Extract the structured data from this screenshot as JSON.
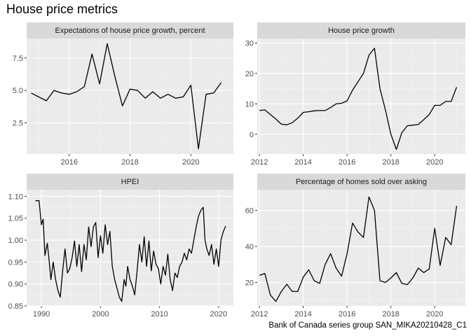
{
  "title": "House price metrics",
  "caption": "Bank of Canada series group SAN_MIKA20210428_C1",
  "chart_data": [
    {
      "type": "line",
      "title": "Expectations of house price growth, percent",
      "xlim": [
        2014.6,
        2021.4
      ],
      "ylim": [
        0.1,
        9.0
      ],
      "x_ticks": [
        2016,
        2018,
        2020
      ],
      "y_ticks": [
        2.5,
        5.0,
        7.5
      ],
      "y_tick_labels": [
        "2.5",
        "5.0",
        "7.5"
      ],
      "x": [
        2014.75,
        2015.25,
        2015.5,
        2015.75,
        2016.0,
        2016.25,
        2016.5,
        2016.75,
        2017.0,
        2017.25,
        2017.5,
        2017.75,
        2018.0,
        2018.25,
        2018.5,
        2018.75,
        2019.0,
        2019.25,
        2019.5,
        2019.75,
        2020.0,
        2020.25,
        2020.5,
        2020.75,
        2021.0
      ],
      "y": [
        4.8,
        4.2,
        5.0,
        4.8,
        4.7,
        4.9,
        5.3,
        7.8,
        5.5,
        8.6,
        6.1,
        3.8,
        5.1,
        5.0,
        4.4,
        4.9,
        4.4,
        4.7,
        4.4,
        4.5,
        5.4,
        0.5,
        4.7,
        4.8,
        5.6
      ]
    },
    {
      "type": "line",
      "title": "House price growth",
      "xlim": [
        2011.9,
        2021.4
      ],
      "ylim": [
        -6.5,
        31.5
      ],
      "x_ticks": [
        2012,
        2014,
        2016,
        2018,
        2020
      ],
      "y_ticks": [
        0,
        10,
        20,
        30
      ],
      "y_tick_labels": [
        "0",
        "10",
        "20",
        "30"
      ],
      "x": [
        2012.0,
        2012.25,
        2012.5,
        2012.75,
        2013.0,
        2013.25,
        2013.5,
        2013.75,
        2014.0,
        2014.25,
        2014.5,
        2014.75,
        2015.0,
        2015.25,
        2015.5,
        2015.75,
        2016.0,
        2016.25,
        2016.5,
        2016.75,
        2017.0,
        2017.25,
        2017.5,
        2017.75,
        2018.0,
        2018.25,
        2018.5,
        2018.75,
        2019.0,
        2019.25,
        2019.5,
        2019.75,
        2020.0,
        2020.25,
        2020.5,
        2020.75,
        2021.0
      ],
      "y": [
        7.8,
        8.0,
        6.5,
        5.0,
        3.3,
        3.1,
        3.8,
        5.3,
        7.2,
        7.4,
        7.7,
        7.8,
        7.8,
        8.8,
        10.0,
        10.2,
        11.0,
        14.5,
        17.3,
        20.0,
        26.0,
        28.3,
        15.0,
        8.0,
        0.0,
        -5.0,
        0.5,
        2.8,
        3.0,
        3.2,
        4.8,
        6.5,
        9.5,
        9.5,
        10.8,
        10.8,
        15.5
      ]
    },
    {
      "type": "line",
      "title": "HPEI",
      "xlim": [
        1987.5,
        2022.5
      ],
      "ylim": [
        0.85,
        1.115
      ],
      "x_ticks": [
        1990,
        2000,
        2010,
        2020
      ],
      "y_ticks": [
        0.85,
        0.9,
        0.95,
        1.0,
        1.05,
        1.1
      ],
      "y_tick_labels": [
        "0.85",
        "0.90",
        "0.95",
        "1.00",
        "1.05",
        "1.10"
      ],
      "x": [
        1989.0,
        1989.6,
        1990.0,
        1990.3,
        1990.6,
        1991.0,
        1991.3,
        1991.6,
        1992.0,
        1992.4,
        1992.8,
        1993.2,
        1993.6,
        1994.0,
        1994.4,
        1994.8,
        1995.2,
        1995.6,
        1996.0,
        1996.4,
        1996.8,
        1997.2,
        1997.6,
        1998.0,
        1998.4,
        1998.8,
        1999.2,
        1999.6,
        2000.0,
        2000.4,
        2000.8,
        2001.2,
        2001.6,
        2002.0,
        2002.4,
        2002.8,
        2003.2,
        2003.6,
        2004.0,
        2004.3,
        2004.6,
        2005.0,
        2005.4,
        2005.8,
        2006.2,
        2006.6,
        2007.0,
        2007.4,
        2007.8,
        2008.2,
        2008.6,
        2009.0,
        2009.4,
        2009.8,
        2010.2,
        2010.6,
        2011.0,
        2011.4,
        2011.8,
        2012.2,
        2012.6,
        2013.0,
        2013.4,
        2013.8,
        2014.2,
        2014.6,
        2015.0,
        2015.4,
        2015.8,
        2016.2,
        2016.6,
        2017.0,
        2017.4,
        2017.7,
        2018.0,
        2018.4,
        2018.8,
        2019.2,
        2019.6,
        2020.0,
        2020.4,
        2020.8,
        2021.2
      ],
      "y": [
        1.09,
        1.09,
        1.035,
        1.048,
        0.965,
        0.993,
        0.955,
        0.91,
        0.95,
        0.91,
        0.885,
        0.87,
        0.93,
        0.98,
        0.925,
        0.935,
        0.96,
        0.998,
        0.94,
        0.99,
        0.928,
        0.99,
        0.955,
        1.03,
        0.985,
        1.03,
        1.04,
        0.96,
        1.01,
        0.97,
        1.035,
        0.99,
        1.02,
        0.94,
        0.91,
        0.89,
        0.87,
        0.86,
        0.91,
        0.895,
        0.94,
        0.91,
        0.895,
        0.875,
        0.93,
        0.99,
        0.95,
        1.008,
        0.94,
        0.998,
        0.93,
        0.975,
        0.945,
        0.935,
        0.9,
        0.94,
        0.92,
        0.968,
        0.91,
        0.885,
        0.925,
        0.915,
        0.94,
        0.95,
        0.97,
        0.955,
        0.98,
        0.97,
        1.0,
        1.03,
        1.055,
        1.068,
        1.075,
        1.0,
        0.98,
        0.965,
        0.99,
        0.945,
        0.98,
        0.94,
        1.0,
        1.02,
        1.032
      ]
    },
    {
      "type": "line",
      "title": "Percentage of homes sold over asking",
      "xlim": [
        2011.9,
        2021.4
      ],
      "ylim": [
        7.0,
        71.5
      ],
      "x_ticks": [
        2012,
        2014,
        2016,
        2018,
        2020
      ],
      "y_ticks": [
        20,
        40,
        60
      ],
      "y_tick_labels": [
        "20",
        "40",
        "60"
      ],
      "x": [
        2012.0,
        2012.25,
        2012.5,
        2012.75,
        2013.0,
        2013.25,
        2013.5,
        2013.75,
        2014.0,
        2014.25,
        2014.5,
        2014.75,
        2015.0,
        2015.25,
        2015.5,
        2015.75,
        2016.0,
        2016.25,
        2016.5,
        2016.75,
        2017.0,
        2017.25,
        2017.5,
        2017.75,
        2018.0,
        2018.25,
        2018.5,
        2018.75,
        2019.0,
        2019.25,
        2019.5,
        2019.75,
        2020.0,
        2020.25,
        2020.5,
        2020.75,
        2021.0
      ],
      "y": [
        24.0,
        25.0,
        13.0,
        9.5,
        15.0,
        19.0,
        15.0,
        15.0,
        23.0,
        27.0,
        21.0,
        19.5,
        30.0,
        36.0,
        28.0,
        23.5,
        36.0,
        53.0,
        48.0,
        45.0,
        67.5,
        60.0,
        21.0,
        20.0,
        22.5,
        25.5,
        19.5,
        18.8,
        22.5,
        28.0,
        25.5,
        27.5,
        50.0,
        29.5,
        45.0,
        41.0,
        62.5
      ]
    }
  ]
}
